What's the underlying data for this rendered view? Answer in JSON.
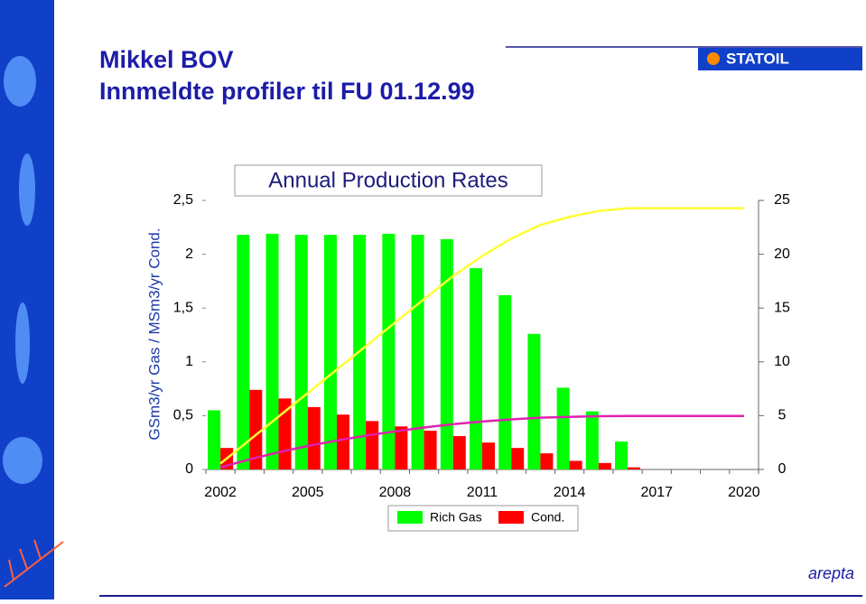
{
  "header": {
    "title": "Mikkel BOV",
    "subtitle": "Innmeldte profiler til FU 01.12.99",
    "logo": "STATOIL",
    "footer_logo": "arepta"
  },
  "chart_data": {
    "type": "bar",
    "title": "Annual Production Rates",
    "y_label": "GSm3/yr Gas / MSm3/yr Cond.",
    "categories": [
      "2002",
      null,
      null,
      "2005",
      null,
      null,
      "2008",
      null,
      null,
      "2011",
      null,
      null,
      "2014",
      null,
      null,
      "2017",
      null,
      null,
      "2020"
    ],
    "series": [
      {
        "name": "Rich Gas",
        "color": "#00ff00",
        "values": [
          0.55,
          2.18,
          2.19,
          2.18,
          2.18,
          2.18,
          2.19,
          2.18,
          2.14,
          1.87,
          1.62,
          1.26,
          0.76,
          0.54,
          0.26,
          0,
          0,
          0,
          0
        ]
      },
      {
        "name": "Cond.",
        "color": "#ff0000",
        "values": [
          0.2,
          0.74,
          0.66,
          0.58,
          0.51,
          0.45,
          0.4,
          0.36,
          0.31,
          0.25,
          0.2,
          0.15,
          0.08,
          0.06,
          0.02,
          0,
          0,
          0,
          0
        ]
      },
      {
        "kind": "line",
        "axis": "y2",
        "color": "#ffff33",
        "values": [
          0.55,
          2.73,
          4.92,
          7.1,
          9.28,
          11.46,
          13.65,
          15.83,
          17.97,
          19.84,
          21.46,
          22.72,
          23.48,
          24.02,
          24.28,
          24.28,
          24.28,
          24.28,
          24.28
        ]
      },
      {
        "kind": "line",
        "axis": "y2",
        "color": "#e020b0",
        "values": [
          0.2,
          0.94,
          1.6,
          2.18,
          2.69,
          3.14,
          3.54,
          3.9,
          4.21,
          4.46,
          4.66,
          4.81,
          4.89,
          4.95,
          4.97,
          4.97,
          4.97,
          4.97,
          4.97
        ]
      }
    ],
    "ylim": [
      0,
      2.5
    ],
    "yticks": [
      0,
      {
        "value": 0.5,
        "label": "0,5"
      },
      1,
      {
        "value": 1.5,
        "label": "1,5"
      },
      2,
      {
        "value": 2.5,
        "label": "2,5"
      }
    ],
    "y2lim": [
      0,
      25
    ],
    "y2ticks": [
      0,
      5,
      10,
      15,
      20,
      25
    ]
  }
}
